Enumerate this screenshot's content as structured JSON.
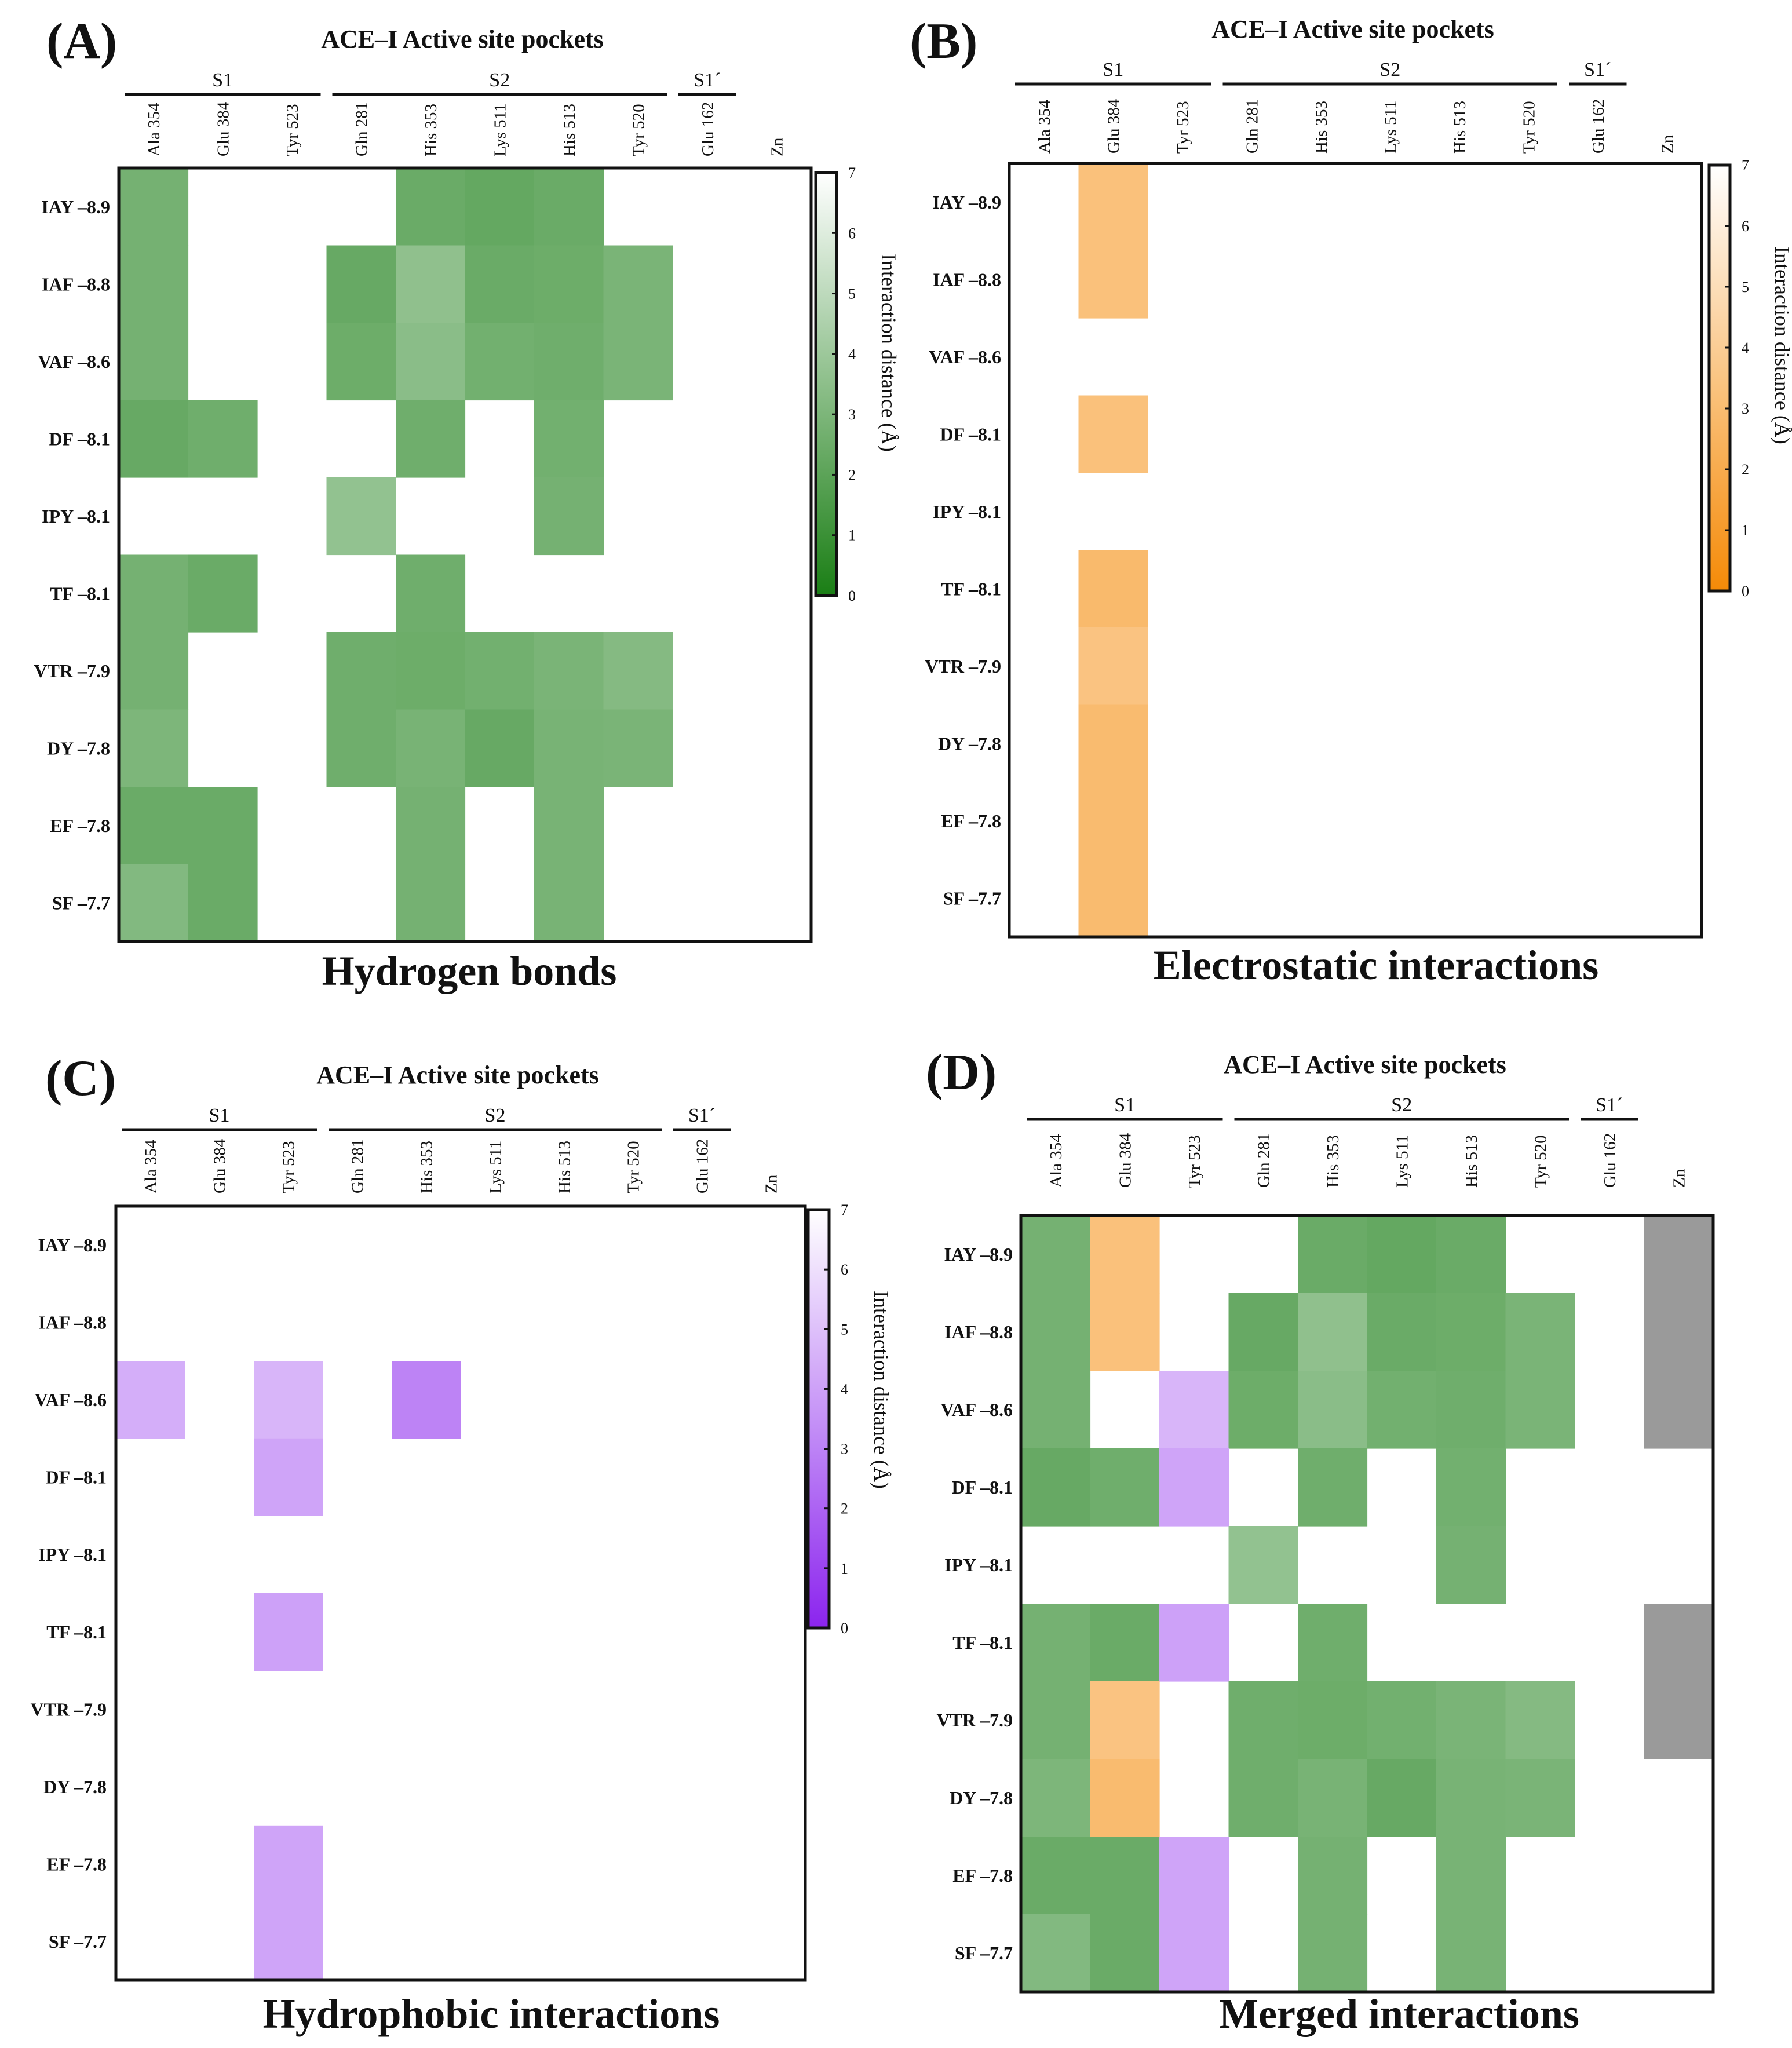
{
  "figure": {
    "site_title": "ACE–I Active site pockets",
    "colorbar_label": "Interaction distance (Å)"
  },
  "chart_data": [
    {
      "type": "heatmap",
      "panel": "(A)",
      "title": "ACE–I Active site pockets",
      "caption": "Hydrogen bonds",
      "groups": [
        {
          "name": "S1",
          "columns": [
            "Ala 354",
            "Glu 384",
            "Tyr 523"
          ]
        },
        {
          "name": "S2",
          "columns": [
            "Gln 281",
            "His 353",
            "Lys 511",
            "His 513",
            "Tyr 520"
          ]
        },
        {
          "name": "S1´",
          "columns": [
            "Glu 162"
          ]
        }
      ],
      "columns": [
        "Ala 354",
        "Glu 384",
        "Tyr 523",
        "Gln 281",
        "His 353",
        "Lys 511",
        "His 513",
        "Tyr 520",
        "Glu 162",
        "Zn"
      ],
      "rows": [
        "IAY –8.9",
        "IAF –8.8",
        "VAF –8.6",
        "DF –8.1",
        "IPY –8.1",
        "TF –8.1",
        "VTR –7.9",
        "DY –7.8",
        "EF –7.8",
        "SF –7.7"
      ],
      "values": [
        [
          3.0,
          null,
          null,
          null,
          2.6,
          2.4,
          2.6,
          null,
          null,
          null
        ],
        [
          3.0,
          null,
          null,
          2.5,
          4.0,
          2.6,
          2.7,
          3.2,
          null,
          null
        ],
        [
          3.0,
          null,
          null,
          2.7,
          3.8,
          2.9,
          2.8,
          3.2,
          null,
          null
        ],
        [
          2.5,
          2.8,
          null,
          null,
          2.8,
          null,
          2.9,
          null,
          null,
          null
        ],
        [
          null,
          null,
          null,
          4.1,
          null,
          null,
          3.0,
          null,
          null,
          null
        ],
        [
          3.0,
          2.6,
          null,
          null,
          2.8,
          null,
          null,
          null,
          null,
          null
        ],
        [
          3.0,
          null,
          null,
          2.8,
          2.7,
          2.9,
          3.2,
          3.6,
          null,
          null
        ],
        [
          3.3,
          null,
          null,
          2.8,
          3.1,
          2.5,
          3.1,
          3.2,
          null,
          null
        ],
        [
          2.6,
          2.6,
          null,
          null,
          3.0,
          null,
          3.1,
          null,
          null,
          null
        ],
        [
          3.5,
          2.6,
          null,
          null,
          3.0,
          null,
          3.1,
          null,
          null,
          null
        ]
      ],
      "colorscale": {
        "min": 0,
        "max": 7,
        "from": "#1a7e15",
        "to": "#ffffff"
      },
      "colorbar": {
        "label": "Interaction distance (Å)",
        "ticks": [
          0,
          1,
          2,
          3,
          4,
          5,
          6,
          7
        ]
      }
    },
    {
      "type": "heatmap",
      "panel": "(B)",
      "title": "ACE–I Active site pockets",
      "caption": "Electrostatic interactions",
      "groups": [
        {
          "name": "S1",
          "columns": [
            "Ala 354",
            "Glu 384",
            "Tyr 523"
          ]
        },
        {
          "name": "S2",
          "columns": [
            "Gln 281",
            "His 353",
            "Lys 511",
            "His 513",
            "Tyr 520"
          ]
        },
        {
          "name": "S1´",
          "columns": [
            "Glu 162"
          ]
        }
      ],
      "columns": [
        "Ala 354",
        "Glu 384",
        "Tyr 523",
        "Gln 281",
        "His 353",
        "Lys 511",
        "His 513",
        "Tyr 520",
        "Glu 162",
        "Zn"
      ],
      "rows": [
        "IAY –8.9",
        "IAF –8.8",
        "VAF –8.6",
        "DF –8.1",
        "IPY –8.1",
        "TF –8.1",
        "VTR –7.9",
        "DY –7.8",
        "EF –7.8",
        "SF –7.7"
      ],
      "values": [
        [
          null,
          3.6,
          null,
          null,
          null,
          null,
          null,
          null,
          null,
          null
        ],
        [
          null,
          3.6,
          null,
          null,
          null,
          null,
          null,
          null,
          null,
          null
        ],
        [
          null,
          null,
          null,
          null,
          null,
          null,
          null,
          null,
          null,
          null
        ],
        [
          null,
          3.6,
          null,
          null,
          null,
          null,
          null,
          null,
          null,
          null
        ],
        [
          null,
          null,
          null,
          null,
          null,
          null,
          null,
          null,
          null,
          null
        ],
        [
          null,
          3.1,
          null,
          null,
          null,
          null,
          null,
          null,
          null,
          null
        ],
        [
          null,
          3.8,
          null,
          null,
          null,
          null,
          null,
          null,
          null,
          null
        ],
        [
          null,
          3.2,
          null,
          null,
          null,
          null,
          null,
          null,
          null,
          null
        ],
        [
          null,
          3.2,
          null,
          null,
          null,
          null,
          null,
          null,
          null,
          null
        ],
        [
          null,
          3.2,
          null,
          null,
          null,
          null,
          null,
          null,
          null,
          null
        ]
      ],
      "colorscale": {
        "min": 0,
        "max": 7,
        "from": "#f58a07",
        "to": "#ffffff"
      },
      "colorbar": {
        "label": "Interaction distance (Å)",
        "ticks": [
          0,
          1,
          2,
          3,
          4,
          5,
          6,
          7
        ]
      }
    },
    {
      "type": "heatmap",
      "panel": "(C)",
      "title": "ACE–I Active site pockets",
      "caption": "Hydrophobic interactions",
      "groups": [
        {
          "name": "S1",
          "columns": [
            "Ala 354",
            "Glu 384",
            "Tyr 523"
          ]
        },
        {
          "name": "S2",
          "columns": [
            "Gln 281",
            "His 353",
            "Lys 511",
            "His 513",
            "Tyr 520"
          ]
        },
        {
          "name": "S1´",
          "columns": [
            "Glu 162"
          ]
        }
      ],
      "columns": [
        "Ala 354",
        "Glu 384",
        "Tyr 523",
        "Gln 281",
        "His 353",
        "Lys 511",
        "His 513",
        "Tyr 520",
        "Glu 162",
        "Zn"
      ],
      "rows": [
        "IAY –8.9",
        "IAF –8.8",
        "VAF –8.6",
        "DF –8.1",
        "IPY –8.1",
        "TF –8.1",
        "VTR –7.9",
        "DY –7.8",
        "EF –7.8",
        "SF –7.7"
      ],
      "values": [
        [
          null,
          null,
          null,
          null,
          null,
          null,
          null,
          null,
          null,
          null
        ],
        [
          null,
          null,
          null,
          null,
          null,
          null,
          null,
          null,
          null,
          null
        ],
        [
          5.0,
          null,
          5.3,
          null,
          3.3,
          null,
          null,
          null,
          null,
          null
        ],
        [
          null,
          null,
          4.6,
          null,
          null,
          null,
          null,
          null,
          null,
          null
        ],
        [
          null,
          null,
          null,
          null,
          null,
          null,
          null,
          null,
          null,
          null
        ],
        [
          null,
          null,
          4.5,
          null,
          null,
          null,
          null,
          null,
          null,
          null
        ],
        [
          null,
          null,
          null,
          null,
          null,
          null,
          null,
          null,
          null,
          null
        ],
        [
          null,
          null,
          null,
          null,
          null,
          null,
          null,
          null,
          null,
          null
        ],
        [
          null,
          null,
          4.6,
          null,
          null,
          null,
          null,
          null,
          null,
          null
        ],
        [
          null,
          null,
          4.6,
          null,
          null,
          null,
          null,
          null,
          null,
          null
        ]
      ],
      "colorscale": {
        "min": 0,
        "max": 7,
        "from": "#8b24ee",
        "to": "#ffffff"
      },
      "colorbar": {
        "label": "Interaction distance (Å)",
        "ticks": [
          0,
          1,
          2,
          3,
          4,
          5,
          6,
          7
        ]
      }
    },
    {
      "type": "heatmap",
      "panel": "(D)",
      "title": "ACE–I Active site pockets",
      "caption": "Merged interactions",
      "groups": [
        {
          "name": "S1",
          "columns": [
            "Ala 354",
            "Glu 384",
            "Tyr 523"
          ]
        },
        {
          "name": "S2",
          "columns": [
            "Gln 281",
            "His 353",
            "Lys 511",
            "His 513",
            "Tyr 520"
          ]
        },
        {
          "name": "S1´",
          "columns": [
            "Glu 162"
          ]
        }
      ],
      "columns": [
        "Ala 354",
        "Glu 384",
        "Tyr 523",
        "Gln 281",
        "His 353",
        "Lys 511",
        "His 513",
        "Tyr 520",
        "Glu 162",
        "Zn"
      ],
      "rows": [
        "IAY –8.9",
        "IAF –8.8",
        "VAF –8.6",
        "DF –8.1",
        "IPY –8.1",
        "TF –8.1",
        "VTR –7.9",
        "DY –7.8",
        "EF –7.8",
        "SF –7.7"
      ],
      "categories": {
        "H": "Hydrogen bond",
        "E": "Electrostatic",
        "P": "Hydrophobic",
        "Z": "Zn coordination"
      },
      "category_colors": {
        "H": "#6ab164",
        "E": "#f8b066",
        "P": "#c99af0",
        "Z": "#9a9a9a"
      },
      "cells": [
        [
          "H",
          "E",
          null,
          null,
          "H",
          "H",
          "H",
          null,
          null,
          "Z"
        ],
        [
          "H",
          "E",
          null,
          "H",
          "H",
          "H",
          "H",
          "H",
          null,
          "Z"
        ],
        [
          "H",
          null,
          "P",
          "H",
          "H",
          "H",
          "H",
          "H",
          null,
          "Z"
        ],
        [
          "H",
          "H",
          "P",
          null,
          "H",
          null,
          "H",
          null,
          null,
          null
        ],
        [
          null,
          null,
          null,
          "H",
          null,
          null,
          "H",
          null,
          null,
          null
        ],
        [
          "H",
          "H",
          "P",
          null,
          "H",
          null,
          null,
          null,
          null,
          "Z"
        ],
        [
          "H",
          "E",
          null,
          "H",
          "H",
          "H",
          "H",
          "H",
          null,
          "Z"
        ],
        [
          "H",
          "E",
          null,
          "H",
          "H",
          "H",
          "H",
          "H",
          null,
          null
        ],
        [
          "H",
          "H",
          "P",
          null,
          "H",
          null,
          "H",
          null,
          null,
          null
        ],
        [
          "H",
          "H",
          "P",
          null,
          "H",
          null,
          "H",
          null,
          null,
          null
        ]
      ],
      "values": [
        [
          3.0,
          3.6,
          null,
          null,
          2.6,
          2.4,
          2.6,
          null,
          null,
          null
        ],
        [
          3.0,
          3.6,
          null,
          2.5,
          4.0,
          2.6,
          2.7,
          3.2,
          null,
          null
        ],
        [
          3.0,
          null,
          5.3,
          2.7,
          3.8,
          2.9,
          2.8,
          3.2,
          null,
          null
        ],
        [
          2.5,
          2.8,
          4.6,
          null,
          2.8,
          null,
          2.9,
          null,
          null,
          null
        ],
        [
          null,
          null,
          null,
          4.1,
          null,
          null,
          3.0,
          null,
          null,
          null
        ],
        [
          3.0,
          2.6,
          4.5,
          null,
          2.8,
          null,
          null,
          null,
          null,
          null
        ],
        [
          3.0,
          3.8,
          null,
          2.8,
          2.7,
          2.9,
          3.2,
          3.6,
          null,
          null
        ],
        [
          3.3,
          3.2,
          null,
          2.8,
          3.1,
          2.5,
          3.1,
          3.2,
          null,
          null
        ],
        [
          2.6,
          2.6,
          4.6,
          null,
          3.0,
          null,
          3.1,
          null,
          null,
          null
        ],
        [
          3.5,
          2.6,
          4.6,
          null,
          3.0,
          null,
          3.1,
          null,
          null,
          null
        ]
      ],
      "colorscales": {
        "H": {
          "min": 0,
          "max": 7,
          "from": "#1a7e15",
          "to": "#ffffff"
        },
        "E": {
          "min": 0,
          "max": 7,
          "from": "#f58a07",
          "to": "#ffffff"
        },
        "P": {
          "min": 0,
          "max": 7,
          "from": "#8b24ee",
          "to": "#ffffff"
        },
        "Z": {
          "min": 0,
          "max": 7,
          "from": "#9a9a9a",
          "to": "#9a9a9a"
        }
      }
    }
  ]
}
